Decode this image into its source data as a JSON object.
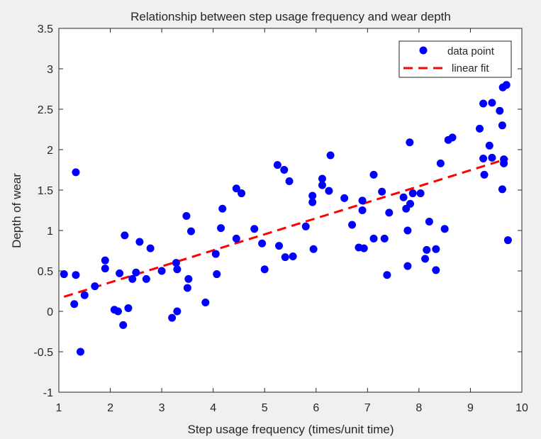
{
  "chart_data": {
    "type": "scatter",
    "title": "Relationship between step usage frequency and wear depth",
    "xlabel": "Step usage frequency (times/unit time)",
    "ylabel": "Depth of wear",
    "xlim": [
      1,
      10
    ],
    "ylim": [
      -1,
      3.5
    ],
    "xticks": [
      1,
      2,
      3,
      4,
      5,
      6,
      7,
      8,
      9,
      10
    ],
    "yticks": [
      -1,
      -0.5,
      0,
      0.5,
      1,
      1.5,
      2,
      2.5,
      3,
      3.5
    ],
    "grid": false,
    "legend_position": "top-right",
    "series": [
      {
        "name": "data point",
        "kind": "scatter",
        "color": "#0000ff",
        "marker": "circle",
        "points": [
          [
            1.1,
            0.46
          ],
          [
            1.3,
            0.09
          ],
          [
            1.33,
            0.45
          ],
          [
            1.33,
            1.72
          ],
          [
            1.42,
            -0.5
          ],
          [
            1.5,
            0.2
          ],
          [
            1.7,
            0.31
          ],
          [
            1.9,
            0.63
          ],
          [
            1.9,
            0.53
          ],
          [
            2.08,
            0.02
          ],
          [
            2.15,
            0.0
          ],
          [
            2.18,
            0.47
          ],
          [
            2.25,
            -0.17
          ],
          [
            2.28,
            0.94
          ],
          [
            2.35,
            0.04
          ],
          [
            2.43,
            0.4
          ],
          [
            2.5,
            0.48
          ],
          [
            2.57,
            0.86
          ],
          [
            2.7,
            0.4
          ],
          [
            2.78,
            0.78
          ],
          [
            3.0,
            0.5
          ],
          [
            3.2,
            -0.08
          ],
          [
            3.28,
            0.6
          ],
          [
            3.3,
            0.52
          ],
          [
            3.3,
            0.0
          ],
          [
            3.48,
            1.18
          ],
          [
            3.5,
            0.29
          ],
          [
            3.52,
            0.4
          ],
          [
            3.57,
            0.99
          ],
          [
            3.85,
            0.11
          ],
          [
            4.05,
            0.71
          ],
          [
            4.07,
            0.46
          ],
          [
            4.15,
            1.03
          ],
          [
            4.18,
            1.27
          ],
          [
            4.45,
            1.52
          ],
          [
            4.45,
            0.9
          ],
          [
            4.55,
            1.46
          ],
          [
            4.8,
            1.02
          ],
          [
            4.95,
            0.84
          ],
          [
            5.0,
            0.52
          ],
          [
            5.25,
            1.81
          ],
          [
            5.28,
            0.81
          ],
          [
            5.38,
            1.75
          ],
          [
            5.4,
            0.67
          ],
          [
            5.48,
            1.61
          ],
          [
            5.55,
            0.68
          ],
          [
            5.8,
            1.05
          ],
          [
            5.93,
            1.43
          ],
          [
            5.93,
            1.35
          ],
          [
            5.95,
            0.77
          ],
          [
            6.12,
            1.56
          ],
          [
            6.12,
            1.64
          ],
          [
            6.25,
            1.49
          ],
          [
            6.28,
            1.93
          ],
          [
            6.55,
            1.4
          ],
          [
            6.7,
            1.07
          ],
          [
            6.83,
            0.79
          ],
          [
            6.9,
            1.37
          ],
          [
            6.9,
            1.25
          ],
          [
            6.93,
            0.78
          ],
          [
            7.12,
            1.69
          ],
          [
            7.12,
            0.9
          ],
          [
            7.28,
            1.48
          ],
          [
            7.33,
            0.9
          ],
          [
            7.38,
            0.45
          ],
          [
            7.42,
            1.22
          ],
          [
            7.7,
            1.41
          ],
          [
            7.75,
            1.27
          ],
          [
            7.78,
            1.0
          ],
          [
            7.78,
            0.56
          ],
          [
            7.82,
            2.09
          ],
          [
            7.83,
            1.33
          ],
          [
            7.88,
            1.46
          ],
          [
            8.03,
            1.46
          ],
          [
            8.12,
            0.65
          ],
          [
            8.15,
            0.76
          ],
          [
            8.2,
            1.11
          ],
          [
            8.33,
            0.77
          ],
          [
            8.33,
            0.51
          ],
          [
            8.42,
            1.83
          ],
          [
            8.5,
            1.02
          ],
          [
            8.57,
            2.12
          ],
          [
            8.65,
            2.15
          ],
          [
            9.18,
            2.26
          ],
          [
            9.25,
            2.57
          ],
          [
            9.25,
            1.89
          ],
          [
            9.27,
            1.69
          ],
          [
            9.37,
            2.05
          ],
          [
            9.42,
            1.9
          ],
          [
            9.42,
            2.58
          ],
          [
            9.57,
            2.48
          ],
          [
            9.62,
            2.3
          ],
          [
            9.62,
            1.51
          ],
          [
            9.63,
            2.77
          ],
          [
            9.65,
            1.83
          ],
          [
            9.65,
            1.88
          ],
          [
            9.7,
            2.8
          ],
          [
            9.73,
            0.88
          ]
        ]
      },
      {
        "name": "linear fit",
        "kind": "line",
        "color": "#ff0000",
        "dashed": true,
        "points": [
          [
            1.1,
            0.18
          ],
          [
            9.73,
            1.89
          ]
        ]
      }
    ]
  }
}
